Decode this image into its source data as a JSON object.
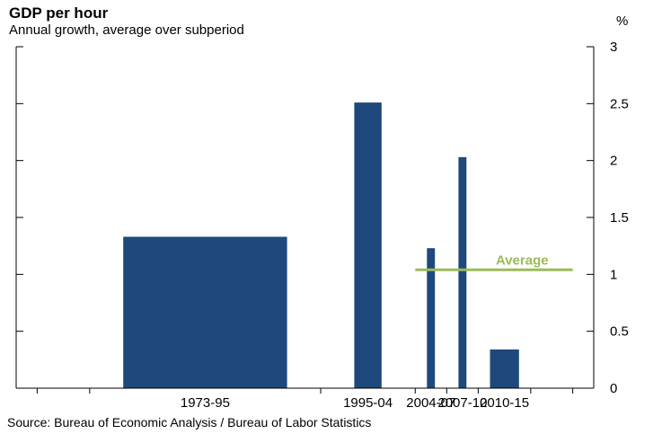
{
  "chart_data": {
    "type": "bar",
    "title": "GDP per hour",
    "subtitle": "Annual growth, average over subperiod",
    "unit_label": "%",
    "categories": [
      "1973-95",
      "1995-04",
      "2004-07",
      "2007-10",
      "2010-15"
    ],
    "values": [
      1.33,
      2.51,
      1.23,
      2.03,
      0.34
    ],
    "x_ranges": [
      [
        1973,
        1995
      ],
      [
        1995,
        2004
      ],
      [
        2004,
        2007
      ],
      [
        2007,
        2010
      ],
      [
        2010,
        2015
      ]
    ],
    "xlim": [
      1966,
      2021
    ],
    "ylim": [
      0,
      3
    ],
    "y_ticks": [
      0,
      0.5,
      1,
      1.5,
      2,
      2.5,
      3
    ],
    "y_tick_labels": [
      "0",
      "0.5",
      "1",
      "1.5",
      "2",
      "2.5",
      "3"
    ],
    "x_minor_ticks": [
      1968,
      1973,
      1995,
      2004,
      2007,
      2010,
      2015,
      2019
    ],
    "reference_line": {
      "label": "Average",
      "value": 1.04,
      "x_range": [
        2004,
        2019
      ],
      "color": "#9bbb59"
    },
    "bar_color": "#1f497d",
    "grid": false,
    "legend": "none",
    "source": "Source: Bureau of Economic Analysis / Bureau of Labor Statistics"
  }
}
